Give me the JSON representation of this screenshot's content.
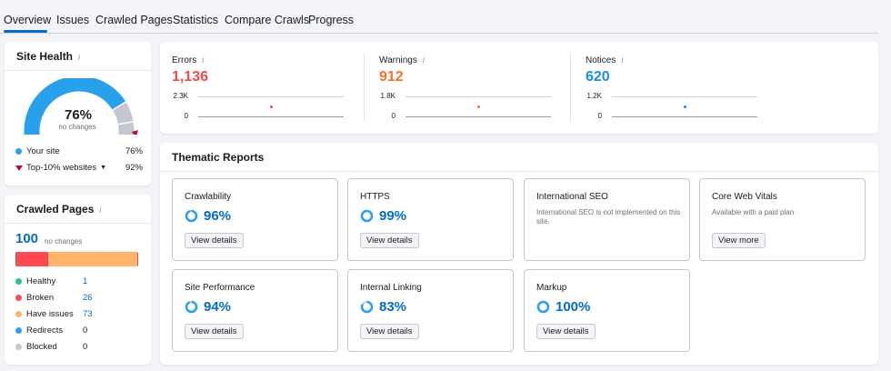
{
  "tabs": [
    "Overview",
    "Issues",
    "Crawled Pages",
    "Statistics",
    "Compare Crawls",
    "Progress"
  ],
  "site_health": {
    "title": "Site Health",
    "percent": "76%",
    "percent_value": 0.76,
    "top10_value": 0.92,
    "change_text": "no changes",
    "legend": [
      {
        "label": "Your site",
        "value": "76%"
      },
      {
        "label": "Top-10% websites",
        "value": "92%"
      }
    ],
    "colors": {
      "your_site": "#29a0ec",
      "top10": "#b10f45",
      "track": "#c4c7cf"
    }
  },
  "crawled_pages": {
    "title": "Crawled Pages",
    "total": "100",
    "change_text": "no changes",
    "rows": [
      {
        "label": "Healthy",
        "value": "1",
        "count": 1,
        "color": "#2ec28a",
        "link": true
      },
      {
        "label": "Broken",
        "value": "26",
        "count": 26,
        "color": "#ff4953",
        "link": true
      },
      {
        "label": "Have issues",
        "value": "73",
        "count": 73,
        "color": "#ffb36b",
        "link": true
      },
      {
        "label": "Redirects",
        "value": "0",
        "count": 0,
        "color": "#29a0ec",
        "link": false
      },
      {
        "label": "Blocked",
        "value": "0",
        "count": 0,
        "color": "#c4c7cf",
        "link": false
      }
    ]
  },
  "issues": [
    {
      "label": "Errors",
      "value": "1,136",
      "color": "#ef4b4b",
      "max_tick": "2.3K",
      "min_tick": "0"
    },
    {
      "label": "Warnings",
      "value": "912",
      "color": "#f1742d",
      "max_tick": "1.8K",
      "min_tick": "0"
    },
    {
      "label": "Notices",
      "value": "620",
      "color": "#1a8fe3",
      "max_tick": "1.2K",
      "min_tick": "0"
    }
  ],
  "thematic": {
    "title": "Thematic Reports",
    "reports": [
      {
        "title": "Crawlability",
        "percent": "96%",
        "value": 0.96,
        "button": "View details"
      },
      {
        "title": "HTTPS",
        "percent": "99%",
        "value": 0.99,
        "button": "View details"
      },
      {
        "title": "International SEO",
        "description": "International SEO is not implemented on this site."
      },
      {
        "title": "Core Web Vitals",
        "description": "Available with a paid plan",
        "button": "View more"
      },
      {
        "title": "Site Performance",
        "percent": "94%",
        "value": 0.94,
        "button": "View details"
      },
      {
        "title": "Internal Linking",
        "percent": "83%",
        "value": 0.83,
        "button": "View details"
      },
      {
        "title": "Markup",
        "percent": "100%",
        "value": 1.0,
        "button": "View details"
      }
    ]
  },
  "info_icon": "info-icon"
}
